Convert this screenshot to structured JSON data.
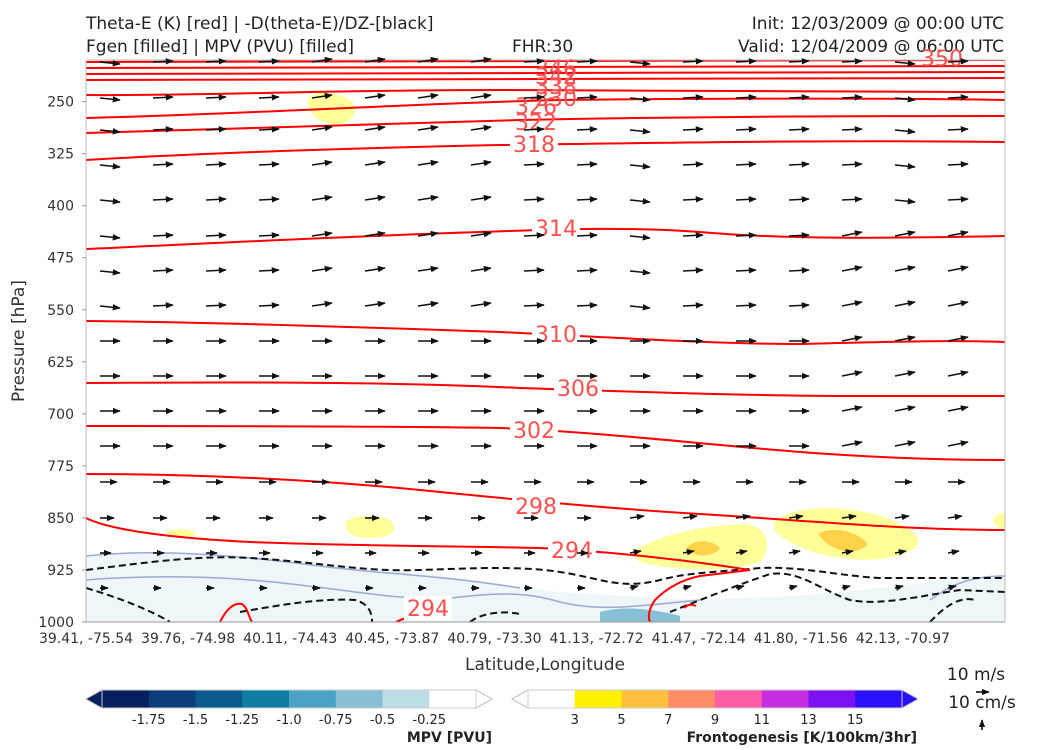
{
  "header": {
    "title_left_1": "Theta-E (K) [red] | -D(theta-E)/DZ-[black]",
    "title_left_2": "Fgen [filled] | MPV (PVU) [filled]",
    "fhr": "FHR:30",
    "init": "Init: 12/03/2009 @ 00:00 UTC",
    "valid": "Valid: 12/04/2009 @ 06:00 UTC"
  },
  "chart_data": {
    "type": "cross-section",
    "ylabel": "Pressure [hPa]",
    "xlabel": "Latitude,Longitude",
    "y_axis": {
      "invert": true,
      "range": [
        1000,
        190
      ],
      "ticks": [
        250,
        325,
        400,
        475,
        550,
        625,
        700,
        775,
        850,
        925,
        1000
      ]
    },
    "x_axis": {
      "ticks": [
        "39.41, -75.54",
        "39.76, -74.98",
        "40.11, -74.43",
        "40.45, -73.87",
        "40.79, -73.30",
        "41.13, -72.72",
        "41.47, -72.14",
        "41.80, -71.56",
        "42.13, -70.97"
      ]
    },
    "grid": false,
    "theta_e_contours": [
      {
        "label": "294",
        "color": "#ff0000"
      },
      {
        "label": "294",
        "color": "#ff0000"
      },
      {
        "label": "298",
        "color": "#ff0000"
      },
      {
        "label": "302",
        "color": "#ff0000"
      },
      {
        "label": "306",
        "color": "#ff0000"
      },
      {
        "label": "310",
        "color": "#ff0000"
      },
      {
        "label": "314",
        "color": "#ff0000"
      },
      {
        "label": "318",
        "color": "#ff0000"
      },
      {
        "label": "322",
        "color": "#ff0000"
      },
      {
        "label": "326",
        "color": "#ff0000"
      },
      {
        "label": "330",
        "color": "#ff0000"
      },
      {
        "label": "338",
        "color": "#ff0000"
      },
      {
        "label": "342",
        "color": "#ff0000"
      },
      {
        "label": "346",
        "color": "#ff0000"
      },
      {
        "label": "350",
        "color": "#ff0000"
      }
    ],
    "wind_scale": {
      "horizontal": "10 m/s",
      "vertical": "10 cm/s"
    },
    "mpv_colorbar": {
      "title": "MPV [PVU]",
      "ticks": [
        "-1.75",
        "-1.5",
        "-1.25",
        "-1.0",
        "-0.75",
        "-0.5",
        "-0.25"
      ],
      "colors": [
        "#08205e",
        "#0a3d7a",
        "#0b5a8c",
        "#0f7ea3",
        "#4aa3c4",
        "#86bfd6",
        "#bcdde6",
        "#ffffff"
      ]
    },
    "fgen_colorbar": {
      "title": "Frontogenesis [K/100km/3hr]",
      "ticks": [
        "3",
        "5",
        "7",
        "9",
        "11",
        "13",
        "15"
      ],
      "colors": [
        "#ffffff",
        "#fff200",
        "#ffc040",
        "#ff8c66",
        "#ff5ca8",
        "#c42ee0",
        "#7b10f0",
        "#2a10ff"
      ]
    }
  }
}
